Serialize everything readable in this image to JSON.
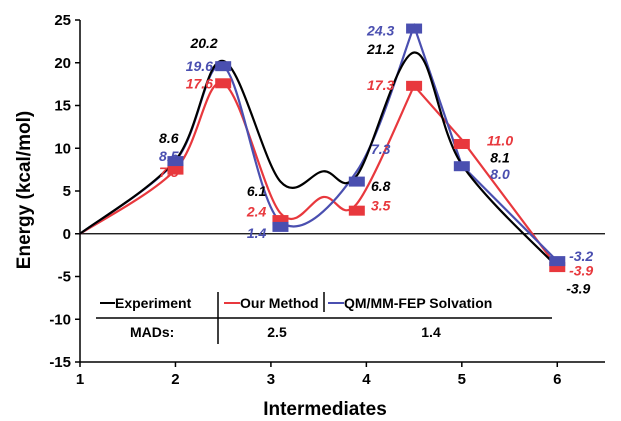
{
  "chart_data": {
    "type": "line",
    "xlabel": "Intermediates",
    "ylabel": "Energy (kcal/mol)",
    "xlim": [
      1,
      6.5
    ],
    "ylim": [
      -15,
      25
    ],
    "x_ticks": [
      1,
      2,
      3,
      4,
      5,
      6
    ],
    "y_ticks": [
      -15,
      -10,
      -5,
      0,
      5,
      10,
      15,
      20,
      25
    ],
    "colors": {
      "Experiment": "#000000",
      "Our Method": "#e8383d",
      "QM/MM-FEP Solvation": "#4a4fb0"
    },
    "series": [
      {
        "name": "Experiment",
        "style": "smooth",
        "x": [
          1,
          2,
          2.5,
          3.1,
          3.55,
          3.9,
          4.5,
          5,
          6
        ],
        "y": [
          0,
          8.6,
          20.2,
          6.1,
          7.3,
          6.8,
          21.2,
          8.1,
          -3.9
        ]
      },
      {
        "name": "Our Method",
        "style": "smooth-to-peak-then-straight",
        "x": [
          1,
          2,
          2.5,
          3.1,
          3.55,
          3.9,
          4.5,
          5,
          6
        ],
        "y": [
          0,
          7.5,
          17.6,
          2.4,
          4.3,
          3.5,
          17.3,
          11.0,
          -3.9
        ],
        "markers": [
          [
            2,
            7.5
          ],
          [
            2.5,
            17.6
          ],
          [
            3.1,
            1.6
          ],
          [
            3.9,
            2.7
          ],
          [
            4.5,
            17.3
          ],
          [
            5,
            10.5
          ],
          [
            6,
            -3.9
          ]
        ]
      },
      {
        "name": "QM/MM-FEP Solvation",
        "style": "smooth-then-straight",
        "x": [
          1,
          2,
          2.5,
          3.1,
          3.9,
          4.5,
          5,
          6
        ],
        "y": [
          0,
          8.5,
          19.6,
          1.4,
          7.3,
          24.3,
          8.0,
          -3.2
        ],
        "markers": [
          [
            2,
            8.5
          ],
          [
            2.5,
            19.6
          ],
          [
            3.1,
            0.8
          ],
          [
            3.9,
            6.1
          ],
          [
            4.5,
            24.0
          ],
          [
            5,
            7.9
          ],
          [
            6,
            -3.2
          ]
        ]
      }
    ],
    "data_labels": [
      {
        "text": "20.2",
        "series": "Experiment",
        "x": 2.3,
        "y": 22.3
      },
      {
        "text": "19.6",
        "series": "QM/MM-FEP Solvation",
        "x": 2.25,
        "y": 19.6
      },
      {
        "text": "17.6",
        "series": "Our Method",
        "x": 2.25,
        "y": 17.6
      },
      {
        "text": "8.6",
        "series": "Experiment",
        "x": 1.93,
        "y": 11.2
      },
      {
        "text": "8.5",
        "series": "QM/MM-FEP Solvation",
        "x": 1.93,
        "y": 9.1
      },
      {
        "text": "7.5",
        "series": "Our Method",
        "x": 1.93,
        "y": 7.2
      },
      {
        "text": "6.1",
        "series": "Experiment",
        "x": 2.85,
        "y": 5.0
      },
      {
        "text": "2.4",
        "series": "Our Method",
        "x": 2.85,
        "y": 2.6
      },
      {
        "text": "1.4",
        "series": "QM/MM-FEP Solvation",
        "x": 2.85,
        "y": 0.1
      },
      {
        "text": "7.3",
        "series": "QM/MM-FEP Solvation",
        "x": 4.15,
        "y": 9.9
      },
      {
        "text": "6.8",
        "series": "Experiment",
        "x": 4.15,
        "y": 5.6
      },
      {
        "text": "3.5",
        "series": "Our Method",
        "x": 4.15,
        "y": 3.3
      },
      {
        "text": "24.3",
        "series": "QM/MM-FEP Solvation",
        "x": 4.15,
        "y": 23.8
      },
      {
        "text": "21.2",
        "series": "Experiment",
        "x": 4.15,
        "y": 21.6
      },
      {
        "text": "17.3",
        "series": "Our Method",
        "x": 4.15,
        "y": 17.4
      },
      {
        "text": "11.0",
        "series": "Our Method",
        "x": 5.4,
        "y": 10.9
      },
      {
        "text": "8.1",
        "series": "Experiment",
        "x": 5.4,
        "y": 8.9
      },
      {
        "text": "8.0",
        "series": "QM/MM-FEP Solvation",
        "x": 5.4,
        "y": 7.0
      },
      {
        "text": "-3.2",
        "series": "QM/MM-FEP Solvation",
        "x": 6.25,
        "y": -2.6
      },
      {
        "text": "-3.9",
        "series": "Our Method",
        "x": 6.25,
        "y": -4.3
      },
      {
        "text": "-3.9",
        "series": "Experiment",
        "x": 6.22,
        "y": -6.4
      }
    ],
    "legend": {
      "placement": "lower-left",
      "entries": [
        "Experiment",
        "Our Method",
        "QM/MM-FEP Solvation"
      ],
      "mads_label": "MADs:",
      "mads_values": [
        "2.5",
        "1.4"
      ]
    }
  }
}
